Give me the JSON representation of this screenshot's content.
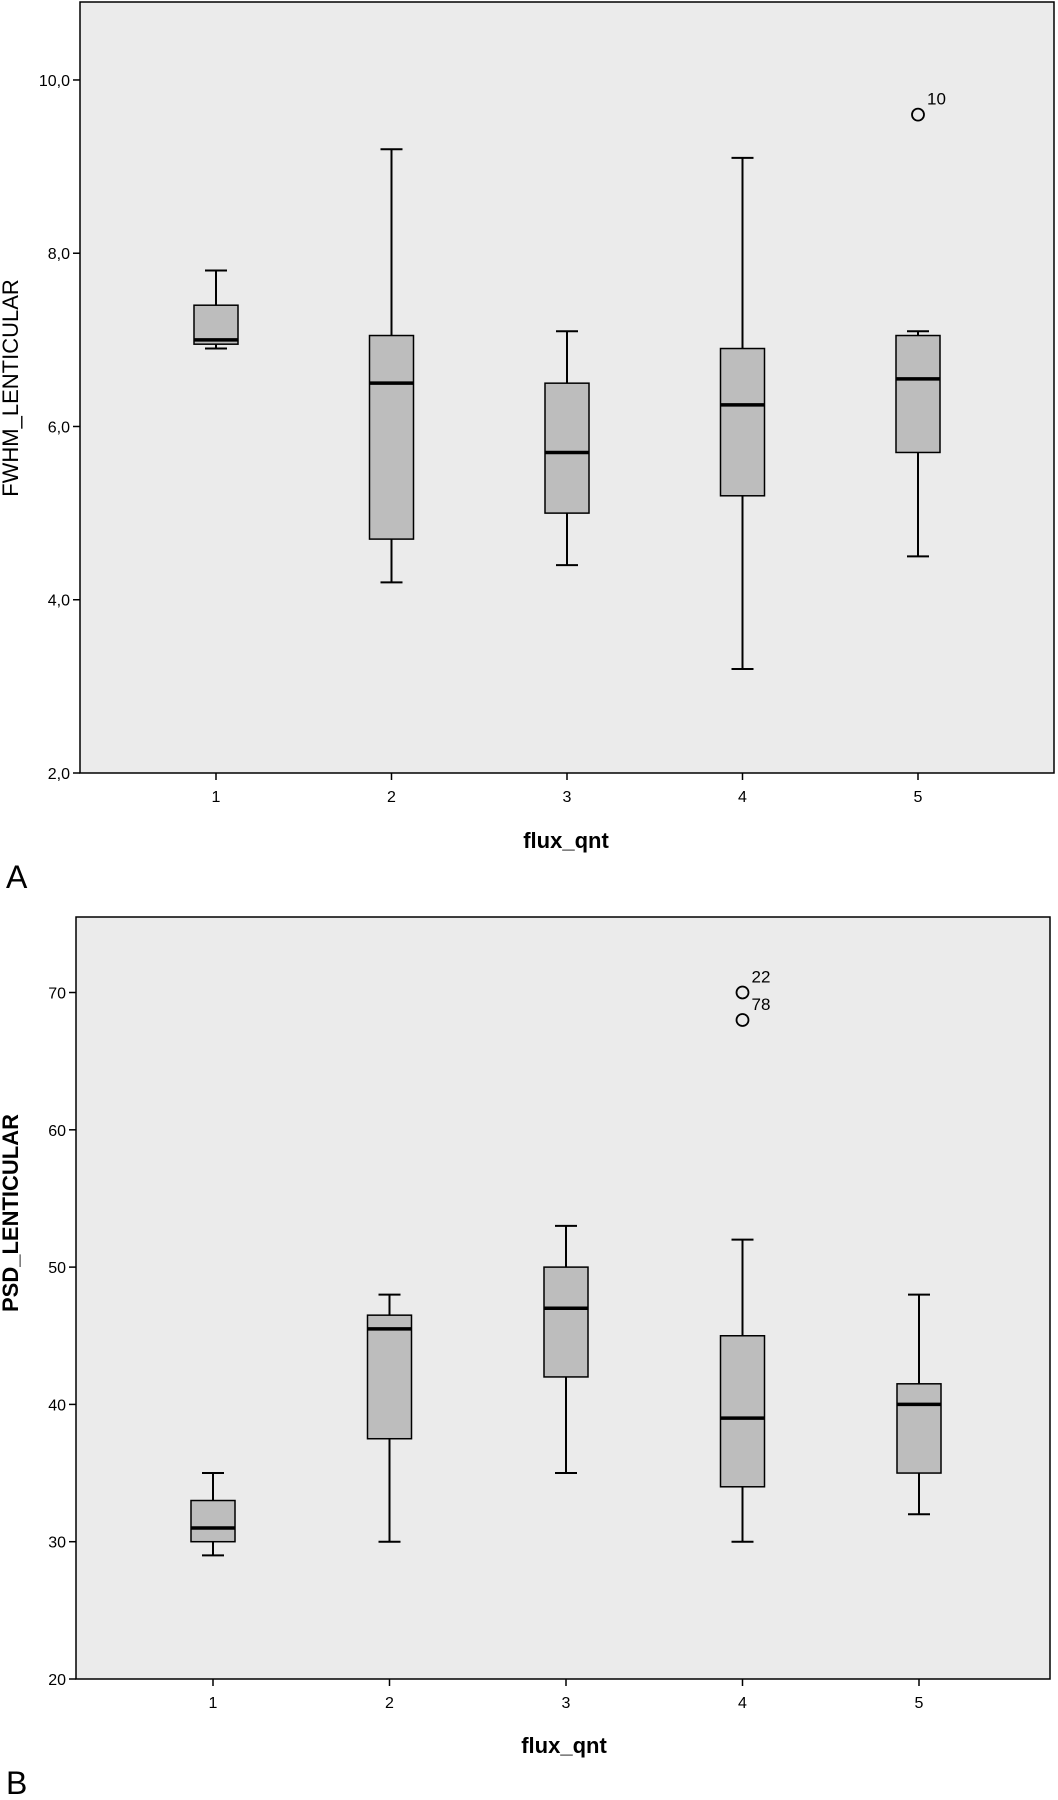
{
  "chart_data": [
    {
      "type": "box",
      "panel_label": "A",
      "xlabel": "flux_qnt",
      "ylabel": "FWHM_LENTICULAR",
      "ylim": [
        2.0,
        10.9
      ],
      "y_ticks": [
        2.0,
        4.0,
        6.0,
        8.0,
        10.0
      ],
      "y_tick_labels": [
        "2,0",
        "4,0",
        "6,0",
        "8,0",
        "10,0"
      ],
      "categories": [
        "1",
        "2",
        "3",
        "4",
        "5"
      ],
      "boxes": [
        {
          "category": "1",
          "whisker_low": 6.9,
          "q1": 6.95,
          "median": 7.0,
          "q3": 7.4,
          "whisker_high": 7.8,
          "outliers": []
        },
        {
          "category": "2",
          "whisker_low": 4.2,
          "q1": 4.7,
          "median": 6.5,
          "q3": 7.05,
          "whisker_high": 9.2,
          "outliers": []
        },
        {
          "category": "3",
          "whisker_low": 4.4,
          "q1": 5.0,
          "median": 5.7,
          "q3": 6.5,
          "whisker_high": 7.1,
          "outliers": []
        },
        {
          "category": "4",
          "whisker_low": 3.2,
          "q1": 5.2,
          "median": 6.25,
          "q3": 6.9,
          "whisker_high": 9.1,
          "outliers": []
        },
        {
          "category": "5",
          "whisker_low": 4.5,
          "q1": 5.7,
          "median": 6.55,
          "q3": 7.05,
          "whisker_high": 7.1,
          "outliers": [
            {
              "value": 9.6,
              "label": "10"
            }
          ]
        }
      ],
      "colors": {
        "plot_bg": "#ebebeb",
        "box_fill": "#bdbdbd",
        "stroke": "#000000"
      }
    },
    {
      "type": "box",
      "panel_label": "B",
      "xlabel": "flux_qnt",
      "ylabel": "PSD_LENTICULAR",
      "ylim": [
        20,
        75.5
      ],
      "y_ticks": [
        20,
        30,
        40,
        50,
        60,
        70
      ],
      "y_tick_labels": [
        "20",
        "30",
        "40",
        "50",
        "60",
        "70"
      ],
      "categories": [
        "1",
        "2",
        "3",
        "4",
        "5"
      ],
      "boxes": [
        {
          "category": "1",
          "whisker_low": 29,
          "q1": 30,
          "median": 31,
          "q3": 33,
          "whisker_high": 35,
          "outliers": []
        },
        {
          "category": "2",
          "whisker_low": 30,
          "q1": 37.5,
          "median": 45.5,
          "q3": 46.5,
          "whisker_high": 48,
          "outliers": []
        },
        {
          "category": "3",
          "whisker_low": 35,
          "q1": 42,
          "median": 47,
          "q3": 50,
          "whisker_high": 53,
          "outliers": []
        },
        {
          "category": "4",
          "whisker_low": 30,
          "q1": 34,
          "median": 39,
          "q3": 45,
          "whisker_high": 52,
          "outliers": [
            {
              "value": 70,
              "label": "22"
            },
            {
              "value": 68,
              "label": "78"
            }
          ]
        },
        {
          "category": "5",
          "whisker_low": 32,
          "q1": 35,
          "median": 40,
          "q3": 41.5,
          "whisker_high": 48,
          "outliers": []
        }
      ],
      "colors": {
        "plot_bg": "#ebebeb",
        "box_fill": "#bdbdbd",
        "stroke": "#000000"
      }
    }
  ]
}
